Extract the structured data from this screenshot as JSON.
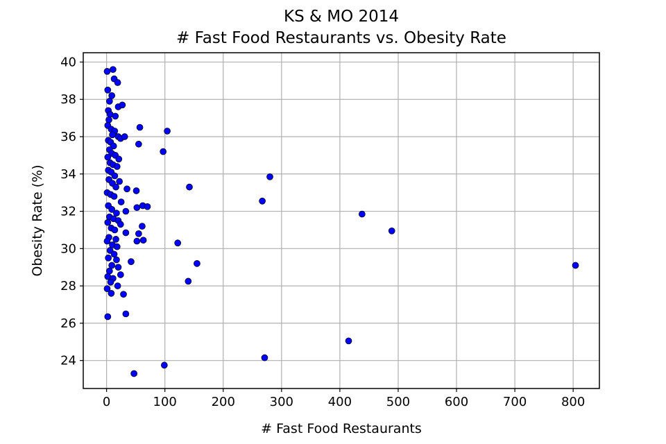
{
  "chart_data": {
    "type": "scatter",
    "title": "KS & MO 2014",
    "subtitle": "# Fast Food Restaurants vs. Obesity Rate",
    "xlabel": "# Fast Food Restaurants",
    "ylabel": "Obesity Rate (%)",
    "xlim": [
      -40,
      845
    ],
    "ylim": [
      22.5,
      40.5
    ],
    "xticks": [
      0,
      100,
      200,
      300,
      400,
      500,
      600,
      700,
      800
    ],
    "yticks": [
      24,
      26,
      28,
      30,
      32,
      34,
      36,
      38,
      40
    ],
    "grid": true,
    "marker_color": "#0000ff",
    "marker_edge_color": "#000000",
    "points": [
      {
        "x": 1,
        "y": 39.5
      },
      {
        "x": 11,
        "y": 39.6
      },
      {
        "x": 13,
        "y": 39.1
      },
      {
        "x": 19,
        "y": 38.9
      },
      {
        "x": 2,
        "y": 38.5
      },
      {
        "x": 9,
        "y": 38.2
      },
      {
        "x": 5,
        "y": 37.9
      },
      {
        "x": 20,
        "y": 37.6
      },
      {
        "x": 27,
        "y": 37.7
      },
      {
        "x": 3,
        "y": 37.4
      },
      {
        "x": 6,
        "y": 37.2
      },
      {
        "x": 15,
        "y": 37.1
      },
      {
        "x": 4,
        "y": 36.9
      },
      {
        "x": 2,
        "y": 36.6
      },
      {
        "x": 57,
        "y": 36.5
      },
      {
        "x": 8,
        "y": 36.4
      },
      {
        "x": 104,
        "y": 36.3
      },
      {
        "x": 14,
        "y": 36.3
      },
      {
        "x": 10,
        "y": 36.1
      },
      {
        "x": 20,
        "y": 36.0
      },
      {
        "x": 24,
        "y": 35.9
      },
      {
        "x": 31,
        "y": 36.0
      },
      {
        "x": 3,
        "y": 35.8
      },
      {
        "x": 7,
        "y": 35.7
      },
      {
        "x": 55,
        "y": 35.6
      },
      {
        "x": 12,
        "y": 35.5
      },
      {
        "x": 5,
        "y": 35.3
      },
      {
        "x": 97,
        "y": 35.2
      },
      {
        "x": 9,
        "y": 35.1
      },
      {
        "x": 15,
        "y": 35.0
      },
      {
        "x": 2,
        "y": 34.9
      },
      {
        "x": 21,
        "y": 34.8
      },
      {
        "x": 6,
        "y": 34.6
      },
      {
        "x": 11,
        "y": 34.5
      },
      {
        "x": 18,
        "y": 34.4
      },
      {
        "x": 3,
        "y": 34.2
      },
      {
        "x": 8,
        "y": 34.1
      },
      {
        "x": 14,
        "y": 33.9
      },
      {
        "x": 280,
        "y": 33.85
      },
      {
        "x": 4,
        "y": 33.7
      },
      {
        "x": 22,
        "y": 33.6
      },
      {
        "x": 10,
        "y": 33.5
      },
      {
        "x": 142,
        "y": 33.3
      },
      {
        "x": 16,
        "y": 33.3
      },
      {
        "x": 35,
        "y": 33.2
      },
      {
        "x": 51,
        "y": 33.1
      },
      {
        "x": 1,
        "y": 33.0
      },
      {
        "x": 7,
        "y": 32.9
      },
      {
        "x": 13,
        "y": 32.8
      },
      {
        "x": 267,
        "y": 32.55
      },
      {
        "x": 25,
        "y": 32.5
      },
      {
        "x": 3,
        "y": 32.3
      },
      {
        "x": 62,
        "y": 32.3
      },
      {
        "x": 70,
        "y": 32.25
      },
      {
        "x": 52,
        "y": 32.2
      },
      {
        "x": 9,
        "y": 32.1
      },
      {
        "x": 33,
        "y": 32.0
      },
      {
        "x": 17,
        "y": 31.9
      },
      {
        "x": 438,
        "y": 31.85
      },
      {
        "x": 5,
        "y": 31.7
      },
      {
        "x": 12,
        "y": 31.6
      },
      {
        "x": 20,
        "y": 31.5
      },
      {
        "x": 2,
        "y": 31.4
      },
      {
        "x": 24,
        "y": 31.3
      },
      {
        "x": 61,
        "y": 31.2
      },
      {
        "x": 8,
        "y": 31.1
      },
      {
        "x": 14,
        "y": 31.0
      },
      {
        "x": 489,
        "y": 30.95
      },
      {
        "x": 33,
        "y": 30.85
      },
      {
        "x": 55,
        "y": 30.8
      },
      {
        "x": 4,
        "y": 30.6
      },
      {
        "x": 16,
        "y": 30.5
      },
      {
        "x": 63,
        "y": 30.45
      },
      {
        "x": 52,
        "y": 30.4
      },
      {
        "x": 1,
        "y": 30.4
      },
      {
        "x": 122,
        "y": 30.3
      },
      {
        "x": 10,
        "y": 30.2
      },
      {
        "x": 18,
        "y": 30.1
      },
      {
        "x": 6,
        "y": 29.9
      },
      {
        "x": 13,
        "y": 29.7
      },
      {
        "x": 3,
        "y": 29.5
      },
      {
        "x": 17,
        "y": 29.4
      },
      {
        "x": 42,
        "y": 29.3
      },
      {
        "x": 155,
        "y": 29.2
      },
      {
        "x": 804,
        "y": 29.1
      },
      {
        "x": 9,
        "y": 29.1
      },
      {
        "x": 20,
        "y": 29.0
      },
      {
        "x": 5,
        "y": 28.8
      },
      {
        "x": 24,
        "y": 28.6
      },
      {
        "x": 2,
        "y": 28.5
      },
      {
        "x": 11,
        "y": 28.4
      },
      {
        "x": 140,
        "y": 28.25
      },
      {
        "x": 7,
        "y": 28.2
      },
      {
        "x": 19,
        "y": 28.0
      },
      {
        "x": 1,
        "y": 27.85
      },
      {
        "x": 8,
        "y": 27.6
      },
      {
        "x": 29,
        "y": 27.55
      },
      {
        "x": 33,
        "y": 26.5
      },
      {
        "x": 2,
        "y": 26.35
      },
      {
        "x": 415,
        "y": 25.05
      },
      {
        "x": 271,
        "y": 24.15
      },
      {
        "x": 99,
        "y": 23.75
      },
      {
        "x": 47,
        "y": 23.3
      }
    ]
  }
}
